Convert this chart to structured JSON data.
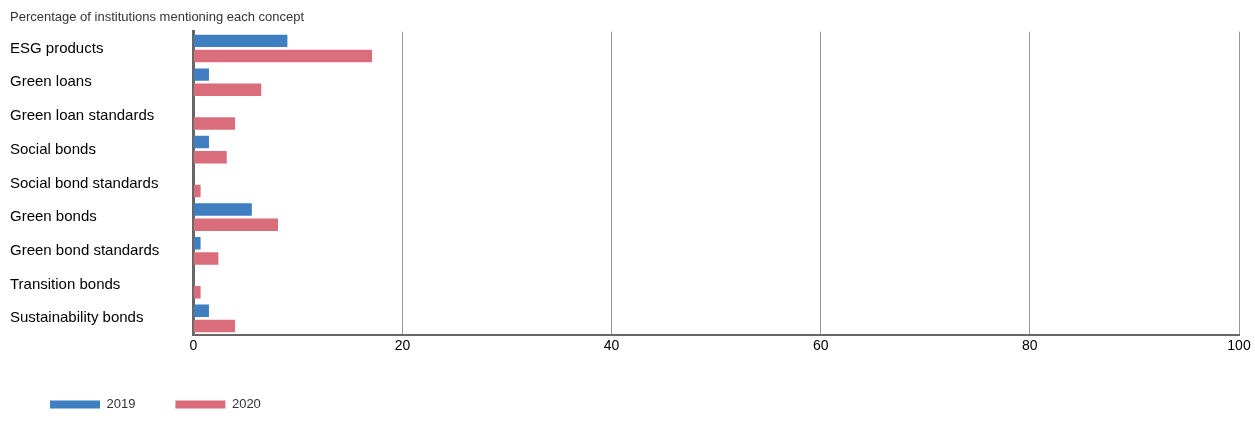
{
  "chart_data": {
    "type": "bar",
    "orientation": "horizontal",
    "title": "Percentage of institutions mentioning each concept",
    "categories": [
      "ESG products",
      "Green loans",
      "Green loan standards",
      "Social bonds",
      "Social bond standards",
      "Green bonds",
      "Green bond standards",
      "Transition bonds",
      "Sustainability bonds"
    ],
    "series": [
      {
        "name": "2019",
        "color": "#3f7fc1",
        "values": [
          9.0,
          1.5,
          0,
          1.5,
          0,
          5.6,
          0.7,
          0,
          1.5
        ]
      },
      {
        "name": "2020",
        "color": "#da6d7b",
        "values": [
          17.1,
          6.5,
          4.0,
          3.2,
          0.7,
          8.1,
          2.4,
          0.7,
          4.0
        ]
      }
    ],
    "xlim": [
      0,
      100
    ],
    "xticks": [
      0,
      20,
      40,
      60,
      80,
      100
    ],
    "grid": "x",
    "legend": "bottom left"
  }
}
